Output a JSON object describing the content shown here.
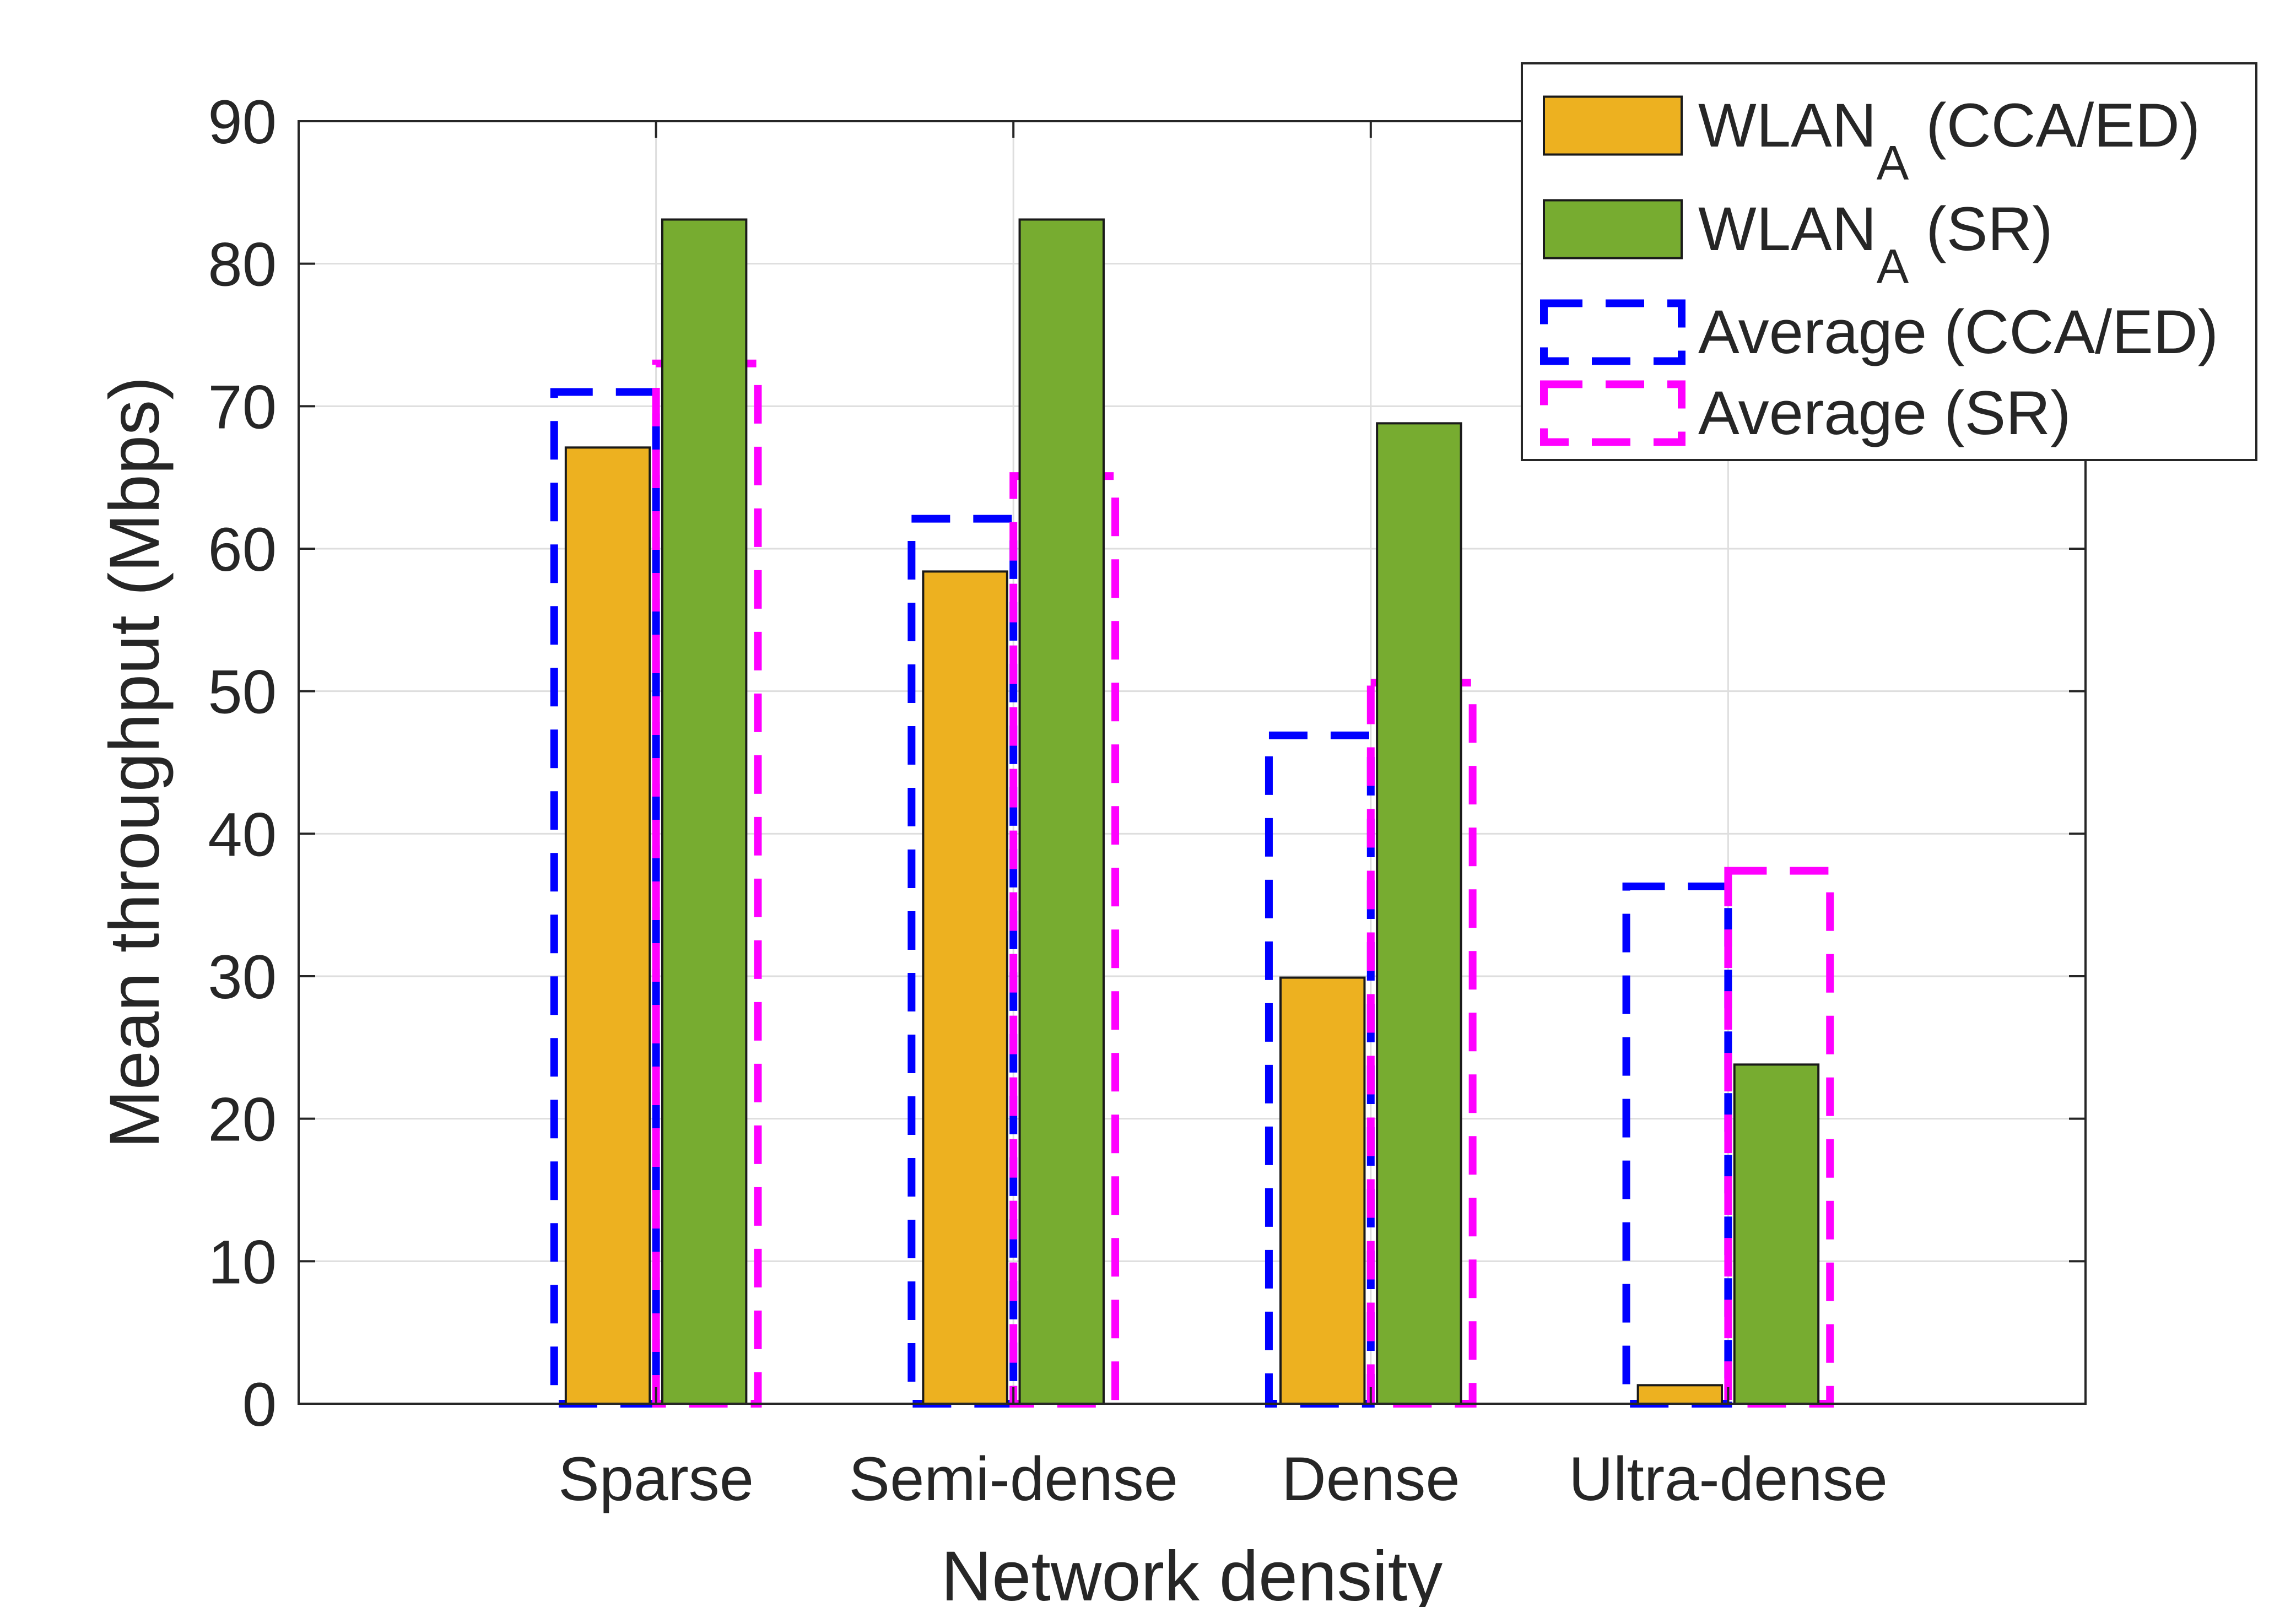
{
  "chart_data": {
    "type": "bar",
    "xlabel": "Network density",
    "ylabel": "Mean throughput (Mbps)",
    "categories": [
      "Sparse",
      "Semi-dense",
      "Dense",
      "Ultra-dense"
    ],
    "ylim": [
      0,
      90
    ],
    "yticks": [
      0,
      10,
      20,
      30,
      40,
      50,
      60,
      70,
      80,
      90
    ],
    "grid": true,
    "legend_position": "top-right",
    "series": [
      {
        "name": "WLAN_A (CCA/ED)",
        "label_main": "WLAN",
        "label_sub": "A",
        "label_tail": " (CCA/ED)",
        "style": "filled",
        "color": "#EDB120",
        "values": [
          67.1,
          58.4,
          29.9,
          1.3
        ]
      },
      {
        "name": "WLAN_A (SR)",
        "label_main": "WLAN",
        "label_sub": "A",
        "label_tail": " (SR)",
        "style": "filled",
        "color": "#77AC30",
        "values": [
          83.1,
          83.1,
          68.8,
          23.8
        ]
      },
      {
        "name": "Average (CCA/ED)",
        "label_main": "Average (CCA/ED)",
        "label_sub": "",
        "label_tail": "",
        "style": "dashed-outline",
        "color": "#0000FF",
        "values": [
          71.0,
          62.1,
          46.9,
          36.3
        ]
      },
      {
        "name": "Average (SR)",
        "label_main": "Average (SR)",
        "label_sub": "",
        "label_tail": "",
        "style": "dashed-outline",
        "color": "#FF00FF",
        "values": [
          73.0,
          65.1,
          50.6,
          37.4
        ]
      }
    ]
  }
}
